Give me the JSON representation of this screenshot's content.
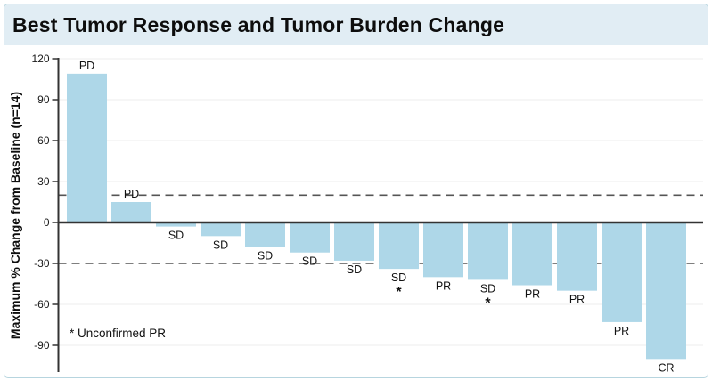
{
  "window": {
    "title": "Best Tumor Response and Tumor Burden Change"
  },
  "chart_data": {
    "type": "bar",
    "title": "Best Tumor Response and Tumor Burden Change",
    "xlabel": "",
    "ylabel": "Maximum % Change from Baseline (n=14)",
    "ylim": [
      -100,
      120
    ],
    "yticks": [
      120,
      90,
      60,
      30,
      0,
      -30,
      -60,
      -90
    ],
    "reference_lines": [
      20,
      -30
    ],
    "grid": "horizontal",
    "legend": "none",
    "annotation": "* Unconfirmed PR",
    "bars": [
      {
        "label": "PD",
        "value": 109,
        "asterisk": false
      },
      {
        "label": "PD",
        "value": 15,
        "asterisk": false
      },
      {
        "label": "SD",
        "value": -3,
        "asterisk": false
      },
      {
        "label": "SD",
        "value": -10,
        "asterisk": false
      },
      {
        "label": "SD",
        "value": -18,
        "asterisk": false
      },
      {
        "label": "SD",
        "value": -22,
        "asterisk": false
      },
      {
        "label": "SD",
        "value": -28,
        "asterisk": false
      },
      {
        "label": "SD",
        "value": -34,
        "asterisk": true
      },
      {
        "label": "PR",
        "value": -40,
        "asterisk": false
      },
      {
        "label": "SD",
        "value": -42,
        "asterisk": true
      },
      {
        "label": "PR",
        "value": -46,
        "asterisk": false
      },
      {
        "label": "PR",
        "value": -50,
        "asterisk": false
      },
      {
        "label": "PR",
        "value": -73,
        "asterisk": false
      },
      {
        "label": "CR",
        "value": -100,
        "asterisk": false
      }
    ],
    "colors": {
      "bar_fill": "#aed7e8",
      "zero_line": "#333333",
      "dashed_line": "#555555",
      "gridline": "#ececec",
      "axis": "#333333",
      "text": "#111111",
      "title_band": "#e1edf4",
      "panel_border": "#b7d5df"
    }
  }
}
